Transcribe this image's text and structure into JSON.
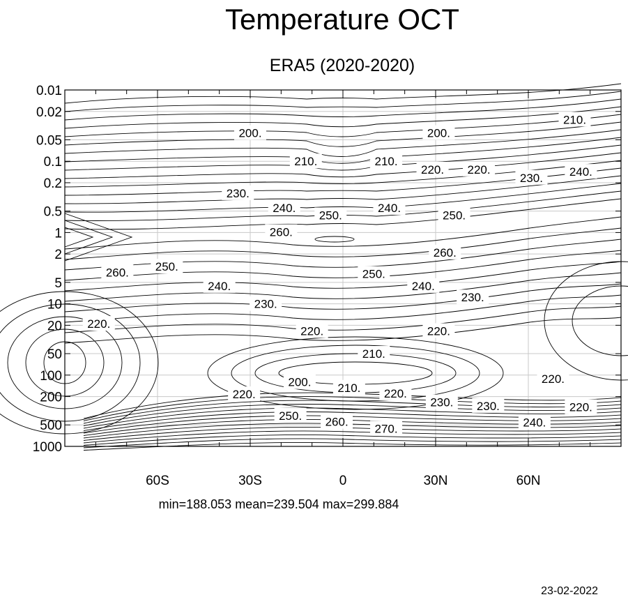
{
  "chart_data": {
    "type": "contour",
    "title": "Temperature OCT",
    "subtitle": "ERA5 (2020-2020)",
    "x_ticks": [
      {
        "value": -60,
        "label": "60S"
      },
      {
        "value": -30,
        "label": "30S"
      },
      {
        "value": 0,
        "label": "0"
      },
      {
        "value": 30,
        "label": "30N"
      },
      {
        "value": 60,
        "label": "60N"
      }
    ],
    "x_range": [
      -90,
      90
    ],
    "y_ticks": [
      {
        "value": 0.01,
        "label": "0.01"
      },
      {
        "value": 0.02,
        "label": "0.02"
      },
      {
        "value": 0.05,
        "label": "0.05"
      },
      {
        "value": 0.1,
        "label": "0.1"
      },
      {
        "value": 0.2,
        "label": "0.2"
      },
      {
        "value": 0.5,
        "label": "0.5"
      },
      {
        "value": 1,
        "label": "1"
      },
      {
        "value": 2,
        "label": "2"
      },
      {
        "value": 5,
        "label": "5"
      },
      {
        "value": 10,
        "label": "10"
      },
      {
        "value": 20,
        "label": "20"
      },
      {
        "value": 50,
        "label": "50"
      },
      {
        "value": 100,
        "label": "100"
      },
      {
        "value": 200,
        "label": "200"
      },
      {
        "value": 500,
        "label": "500"
      },
      {
        "value": 1000,
        "label": "1000"
      }
    ],
    "y_range": [
      0.01,
      1000
    ],
    "y_scale": "log",
    "y_reversed": true,
    "grid": true,
    "contour_labels": [
      {
        "lat": -30,
        "p": 0.04,
        "label": "200."
      },
      {
        "lat": 31,
        "p": 0.04,
        "label": "200."
      },
      {
        "lat": 75,
        "p": 0.026,
        "label": "210."
      },
      {
        "lat": -12,
        "p": 0.1,
        "label": "210."
      },
      {
        "lat": 14,
        "p": 0.1,
        "label": "210."
      },
      {
        "lat": 29,
        "p": 0.13,
        "label": "220."
      },
      {
        "lat": 44,
        "p": 0.13,
        "label": "220."
      },
      {
        "lat": 61,
        "p": 0.17,
        "label": "230."
      },
      {
        "lat": 77,
        "p": 0.14,
        "label": "240."
      },
      {
        "lat": -34,
        "p": 0.28,
        "label": "230."
      },
      {
        "lat": -19,
        "p": 0.45,
        "label": "240."
      },
      {
        "lat": -4,
        "p": 0.57,
        "label": "250."
      },
      {
        "lat": 15,
        "p": 0.45,
        "label": "240."
      },
      {
        "lat": 36,
        "p": 0.57,
        "label": "250."
      },
      {
        "lat": -20,
        "p": 0.98,
        "label": "260."
      },
      {
        "lat": 33,
        "p": 1.9,
        "label": "260."
      },
      {
        "lat": -73,
        "p": 3.6,
        "label": "260."
      },
      {
        "lat": -57,
        "p": 3.0,
        "label": "250."
      },
      {
        "lat": -40,
        "p": 5.6,
        "label": "240."
      },
      {
        "lat": 10,
        "p": 3.8,
        "label": "250."
      },
      {
        "lat": 26,
        "p": 5.6,
        "label": "240."
      },
      {
        "lat": -25,
        "p": 10,
        "label": "230."
      },
      {
        "lat": 42,
        "p": 8.1,
        "label": "230."
      },
      {
        "lat": -79,
        "p": 19,
        "label": "220."
      },
      {
        "lat": -10,
        "p": 24,
        "label": "220."
      },
      {
        "lat": 31,
        "p": 24,
        "label": "220."
      },
      {
        "lat": 10,
        "p": 50,
        "label": "210."
      },
      {
        "lat": -14,
        "p": 125,
        "label": "200."
      },
      {
        "lat": 2,
        "p": 150,
        "label": "210."
      },
      {
        "lat": 17,
        "p": 180,
        "label": "220."
      },
      {
        "lat": -32,
        "p": 185,
        "label": "220."
      },
      {
        "lat": 32,
        "p": 240,
        "label": "230."
      },
      {
        "lat": 47,
        "p": 270,
        "label": "230."
      },
      {
        "lat": 68,
        "p": 112,
        "label": "220."
      },
      {
        "lat": 77,
        "p": 280,
        "label": "220."
      },
      {
        "lat": -17,
        "p": 370,
        "label": "250."
      },
      {
        "lat": -2,
        "p": 450,
        "label": "260."
      },
      {
        "lat": 14,
        "p": 560,
        "label": "270."
      },
      {
        "lat": 62,
        "p": 460,
        "label": "240."
      }
    ]
  },
  "stats": "min=188.053   mean=239.504   max=299.884",
  "date": "23-02-2022"
}
